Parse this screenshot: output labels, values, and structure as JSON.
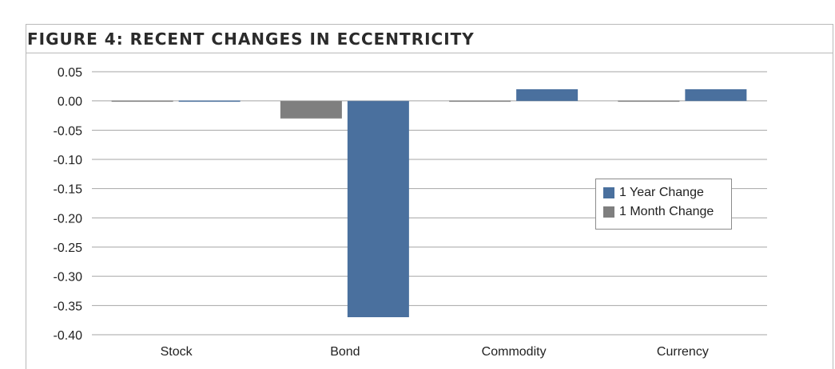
{
  "figure": {
    "title": "FIGURE 4: RECENT CHANGES IN ECCENTRICITY"
  },
  "chart_data": {
    "type": "bar",
    "title": "FIGURE 4: RECENT CHANGES IN ECCENTRICITY",
    "xlabel": "",
    "ylabel": "",
    "categories": [
      "Stock",
      "Bond",
      "Commodity",
      "Currency"
    ],
    "series": [
      {
        "name": "1 Month Change",
        "values": [
          0.0,
          -0.03,
          0.0,
          0.0
        ],
        "color": "#7f7f7f"
      },
      {
        "name": "1 Year Change",
        "values": [
          0.0,
          -0.37,
          0.02,
          0.02
        ],
        "color": "#4a709e"
      }
    ],
    "ylim": [
      -0.4,
      0.05
    ],
    "yticks": [
      "0.05",
      "0.00",
      "-0.05",
      "-0.10",
      "-0.15",
      "-0.20",
      "-0.25",
      "-0.30",
      "-0.35",
      "-0.40"
    ],
    "ytick_values": [
      0.05,
      0.0,
      -0.05,
      -0.1,
      -0.15,
      -0.2,
      -0.25,
      -0.3,
      -0.35,
      -0.4
    ],
    "grid": true,
    "legend": {
      "placement": "right",
      "entries": [
        {
          "label": "1 Year Change",
          "color": "#4a709e"
        },
        {
          "label": "1 Month Change",
          "color": "#7f7f7f"
        }
      ]
    }
  }
}
